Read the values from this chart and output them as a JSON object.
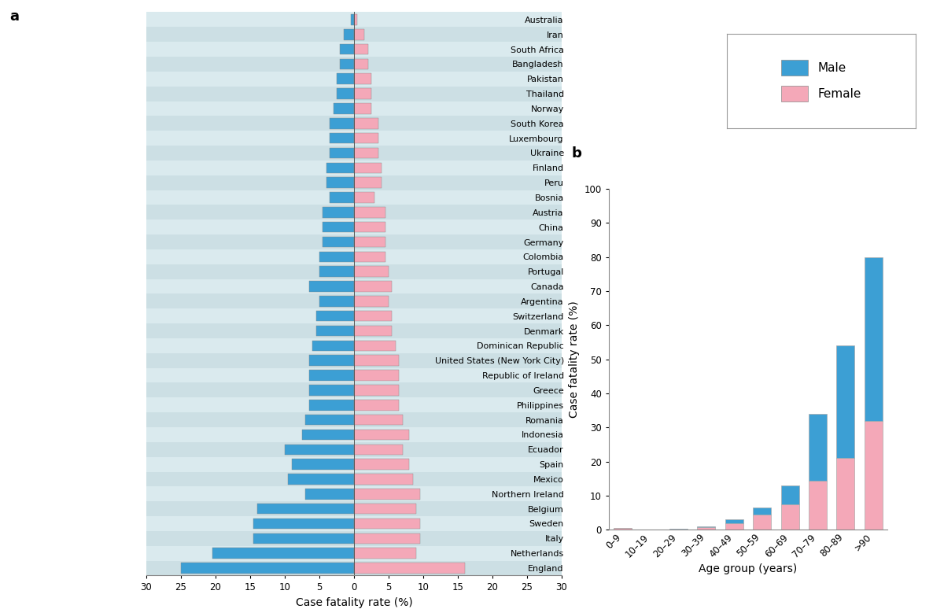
{
  "panel_a": {
    "countries": [
      "England",
      "Netherlands",
      "Italy",
      "Sweden",
      "Belgium",
      "Northern Ireland",
      "Mexico",
      "Spain",
      "Ecuador",
      "Indonesia",
      "Romania",
      "Philippines",
      "Greece",
      "Republic of Ireland",
      "United States (New York City)",
      "Dominican Republic",
      "Denmark",
      "Switzerland",
      "Argentina",
      "Canada",
      "Portugal",
      "Colombia",
      "Germany",
      "China",
      "Austria",
      "Bosnia",
      "Peru",
      "Finland",
      "Ukraine",
      "Luxembourg",
      "South Korea",
      "Norway",
      "Thailand",
      "Pakistan",
      "Bangladesh",
      "South Africa",
      "Iran",
      "Australia"
    ],
    "male": [
      25.0,
      20.5,
      14.5,
      14.5,
      14.0,
      7.0,
      9.5,
      9.0,
      10.0,
      7.5,
      7.0,
      6.5,
      6.5,
      6.5,
      6.5,
      6.0,
      5.5,
      5.5,
      5.0,
      6.5,
      5.0,
      5.0,
      4.5,
      4.5,
      4.5,
      3.5,
      4.0,
      4.0,
      3.5,
      3.5,
      3.5,
      3.0,
      2.5,
      2.5,
      2.0,
      2.0,
      1.5,
      0.5
    ],
    "female": [
      16.0,
      9.0,
      9.5,
      9.5,
      9.0,
      9.5,
      8.5,
      8.0,
      7.0,
      8.0,
      7.0,
      6.5,
      6.5,
      6.5,
      6.5,
      6.0,
      5.5,
      5.5,
      5.0,
      5.5,
      5.0,
      4.5,
      4.5,
      4.5,
      4.5,
      3.0,
      4.0,
      4.0,
      3.5,
      3.5,
      3.5,
      2.5,
      2.5,
      2.5,
      2.0,
      2.0,
      1.5,
      0.5
    ]
  },
  "panel_b": {
    "age_groups": [
      "0–9",
      "10–19",
      "20–29",
      "30–39",
      "40–49",
      "50–59",
      "60–69",
      "70–79",
      "80–89",
      ">90"
    ],
    "male": [
      0.5,
      0.2,
      0.3,
      1.0,
      3.0,
      6.5,
      13.0,
      34.0,
      54.0,
      80.0
    ],
    "female": [
      0.5,
      0.2,
      0.2,
      0.8,
      2.0,
      4.5,
      7.5,
      14.5,
      21.0,
      32.0
    ]
  },
  "male_color": "#3c9fd4",
  "female_color": "#f4a8b8",
  "bg_stripe_1": "#ccdfe4",
  "bg_stripe_2": "#daeaee",
  "xlim_a": 30,
  "ylim_b": 100
}
